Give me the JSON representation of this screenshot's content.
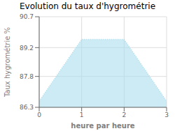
{
  "chart_data": {
    "type": "area",
    "title": "Evolution du taux d'hygrométrie",
    "xlabel": "heure par heure",
    "ylabel": "Taux hygrométrie %",
    "x": [
      0,
      1,
      2,
      3
    ],
    "values": [
      86.6,
      89.6,
      89.6,
      86.6
    ],
    "color": "#aaddee",
    "line_style": "dotted",
    "xlim": [
      0,
      3
    ],
    "ylim": [
      86.3,
      90.7
    ],
    "xticks": [
      0,
      1,
      2,
      3
    ],
    "yticks": [
      86.3,
      87.8,
      89.2,
      90.7
    ],
    "grid": true
  }
}
